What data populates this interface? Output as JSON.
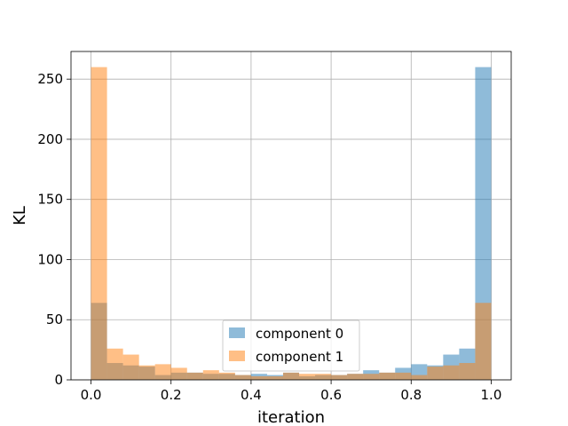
{
  "chart_data": {
    "type": "bar",
    "title": "",
    "xlabel": "iteration",
    "ylabel": "KL",
    "xlim": [
      -0.05,
      1.05
    ],
    "ylim": [
      0,
      273
    ],
    "x_ticks": [
      "0.0",
      "0.2",
      "0.4",
      "0.6",
      "0.8",
      "1.0"
    ],
    "y_ticks": [
      "0",
      "50",
      "100",
      "150",
      "200",
      "250"
    ],
    "grid": true,
    "legend_position": "lower center",
    "bin_edges": [
      0,
      0.04,
      0.08,
      0.12,
      0.16,
      0.2,
      0.24,
      0.28,
      0.32,
      0.36,
      0.4,
      0.44,
      0.48,
      0.52,
      0.56,
      0.6,
      0.64,
      0.68,
      0.72,
      0.76,
      0.8,
      0.84,
      0.88,
      0.92,
      0.96,
      1.0
    ],
    "series": [
      {
        "name": "component 0",
        "color": "#1f77b4",
        "alpha": 0.5,
        "values": [
          64,
          14,
          12,
          11,
          4,
          6,
          6,
          5,
          5,
          4,
          5,
          4,
          6,
          3,
          4,
          4,
          5,
          8,
          6,
          10,
          13,
          12,
          21,
          26,
          260
        ]
      },
      {
        "name": "component 1",
        "color": "#ff7f0e",
        "alpha": 0.5,
        "values": [
          260,
          26,
          21,
          12,
          13,
          10,
          6,
          8,
          6,
          4,
          3,
          3,
          6,
          5,
          5,
          4,
          5,
          5,
          6,
          6,
          4,
          11,
          12,
          14,
          64
        ]
      }
    ]
  }
}
